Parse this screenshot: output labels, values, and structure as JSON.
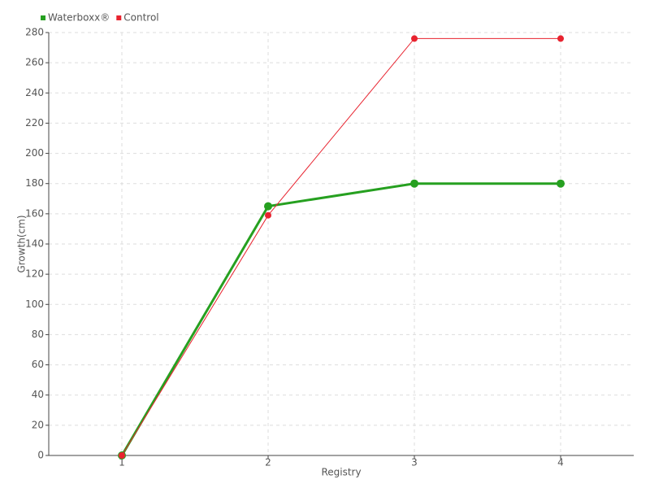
{
  "chart_data": {
    "type": "line",
    "x_label": "Registry",
    "y_label": "Growth(cm)",
    "categories": [
      "1",
      "2",
      "3",
      "4"
    ],
    "series": [
      {
        "name": "Waterboxx®",
        "color": "#26a020",
        "values": [
          0,
          165,
          180,
          180
        ]
      },
      {
        "name": "Control",
        "color": "#e8232f",
        "values": [
          0,
          159,
          276,
          276
        ]
      }
    ],
    "ylim": [
      0,
      280
    ],
    "yticks": [
      0,
      20,
      40,
      60,
      80,
      100,
      120,
      140,
      160,
      180,
      200,
      220,
      240,
      260,
      280
    ],
    "grid": true,
    "legend": "top-left"
  }
}
